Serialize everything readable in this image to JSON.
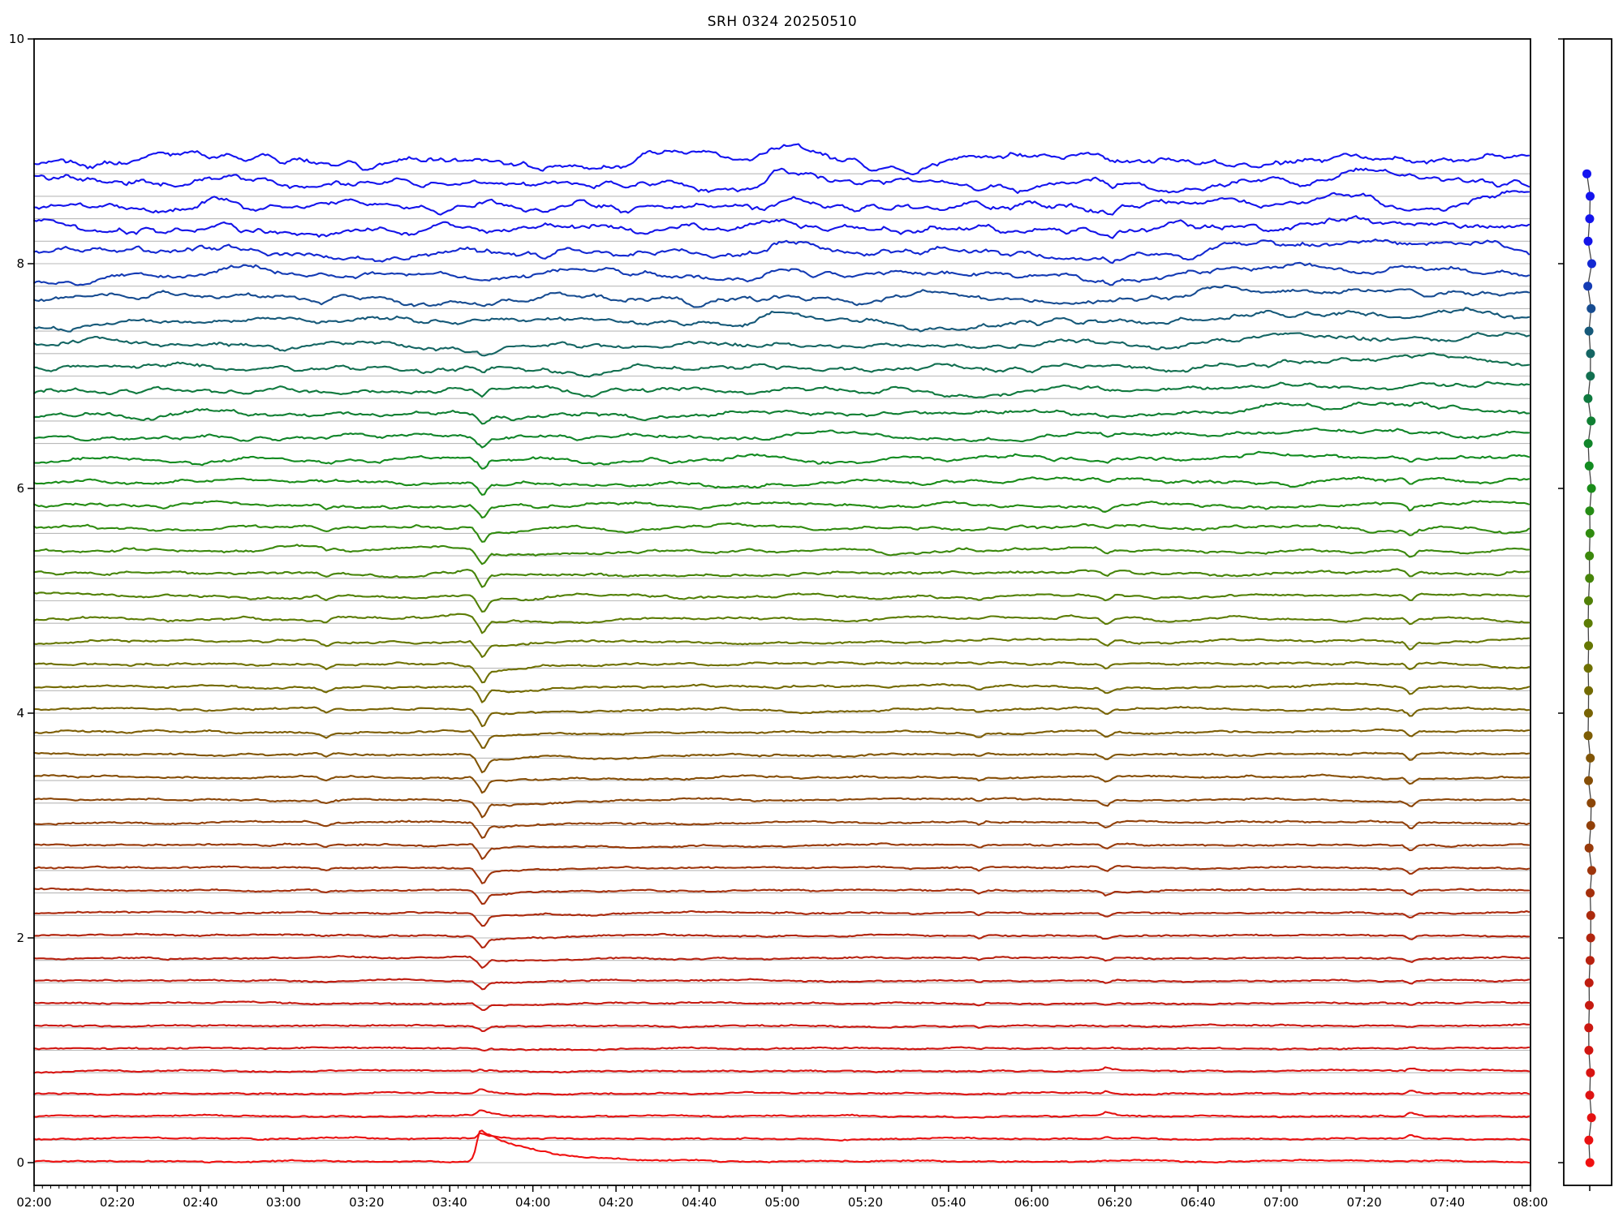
{
  "title": "SRH 0324 20250510",
  "colors": {
    "background": "#ffffff",
    "axis": "#000000",
    "baseline_grid": "#b9b9b9",
    "tick_label": "#000000",
    "marker_line": "#444444"
  },
  "axes": {
    "x_tick_labels": [
      "02:00",
      "02:20",
      "02:40",
      "03:00",
      "03:20",
      "03:40",
      "04:00",
      "04:20",
      "04:40",
      "05:00",
      "05:20",
      "05:40",
      "06:00",
      "06:20",
      "06:40",
      "07:00",
      "07:20",
      "07:40",
      "08:00"
    ],
    "y_tick_labels": [
      "0",
      "2",
      "4",
      "6",
      "8",
      "10"
    ],
    "y_tick_values": [
      0,
      2,
      4,
      6,
      8,
      10
    ],
    "x_range_hours": [
      2,
      8
    ],
    "y_range": [
      -0.2,
      10
    ],
    "x_major_tick_minutes": 20,
    "x_minor_tick_minutes": 2
  },
  "chart_data": {
    "type": "line",
    "subtype": "stacked-multifrequency-radio-light-curves",
    "title": "SRH 0324 20250510",
    "x_unit": "time UT",
    "x_start": "02:00",
    "x_end": "08:00",
    "ylim": [
      -0.2,
      10
    ],
    "n_traces": 45,
    "trace_offset_start": 0.0,
    "trace_offset_step": 0.2,
    "trace_baseline_gridlines": true,
    "colormap_stops": [
      {
        "pos": 0.0,
        "color": "#f01010"
      },
      {
        "pos": 0.09,
        "color": "#d81412"
      },
      {
        "pos": 0.18,
        "color": "#bf1c10"
      },
      {
        "pos": 0.27,
        "color": "#a52e0c"
      },
      {
        "pos": 0.36,
        "color": "#8c4508"
      },
      {
        "pos": 0.43,
        "color": "#7d5c04"
      },
      {
        "pos": 0.5,
        "color": "#6e7000"
      },
      {
        "pos": 0.55,
        "color": "#5a7d04"
      },
      {
        "pos": 0.64,
        "color": "#2e8c0f"
      },
      {
        "pos": 0.7,
        "color": "#128c1e"
      },
      {
        "pos": 0.77,
        "color": "#0f7a3c"
      },
      {
        "pos": 0.82,
        "color": "#146464"
      },
      {
        "pos": 0.86,
        "color": "#174f8c"
      },
      {
        "pos": 0.9,
        "color": "#1330c8"
      },
      {
        "pos": 0.93,
        "color": "#1414e8"
      },
      {
        "pos": 1.0,
        "color": "#1414f0"
      }
    ],
    "lift": {
      "base": 0.012,
      "linear": 0.045,
      "quartic": 0.06
    },
    "noise": {
      "slow_base": 0.004,
      "slow_scale": 0.03,
      "slow_pow": 2.5,
      "fast_frac": 0.55,
      "jitter": 0.0045
    },
    "events": [
      {
        "id": "flare-main-dip",
        "time": "03:48",
        "t": 3.8,
        "shape": "v",
        "width": 0.05,
        "amp": -0.17,
        "traces": [
          4,
          38
        ],
        "peak": 19,
        "tail": 0.3,
        "tail_decay": 0.35
      },
      {
        "id": "flare-bottom-burst",
        "time": "03:47",
        "t": 3.79,
        "shape": "spike_decay",
        "width": 0.015,
        "decay": 0.22,
        "amp": 0.28,
        "traces": [
          0,
          0
        ],
        "peak": 0
      },
      {
        "id": "flare-low-spike",
        "time": "03:47",
        "t": 3.79,
        "shape": "spike_decay",
        "width": 0.012,
        "decay": 0.05,
        "amp": 0.05,
        "traces": [
          1,
          5
        ],
        "peak": 1
      },
      {
        "id": "dip-0310",
        "time": "03:10",
        "t": 3.17,
        "shape": "v",
        "width": 0.04,
        "amp": -0.04,
        "traces": [
          10,
          33
        ],
        "peak": 22
      },
      {
        "id": "dip-0547",
        "time": "05:47",
        "t": 5.79,
        "shape": "v",
        "width": 0.03,
        "amp": -0.03,
        "traces": [
          3,
          28
        ],
        "peak": 15
      },
      {
        "id": "dip-0618",
        "time": "06:18",
        "t": 6.3,
        "shape": "v",
        "width": 0.04,
        "amp": -0.055,
        "traces": [
          5,
          35
        ],
        "peak": 20
      },
      {
        "id": "spike-0618-low",
        "time": "06:18",
        "t": 6.3,
        "shape": "spike_decay",
        "width": 0.012,
        "decay": 0.03,
        "amp": 0.03,
        "traces": [
          1,
          5
        ],
        "peak": 2
      },
      {
        "id": "dip-0619-high",
        "time": "06:19",
        "t": 6.32,
        "shape": "v",
        "width": 0.035,
        "amp": -0.05,
        "traces": [
          38,
          44
        ],
        "peak": 42
      },
      {
        "id": "dip-0731",
        "time": "07:31",
        "t": 7.52,
        "shape": "v",
        "width": 0.035,
        "amp": -0.065,
        "traces": [
          5,
          35
        ],
        "peak": 20
      },
      {
        "id": "spike-0731-low",
        "time": "07:31",
        "t": 7.52,
        "shape": "spike_decay",
        "width": 0.012,
        "decay": 0.03,
        "amp": 0.035,
        "traces": [
          1,
          5
        ],
        "peak": 2
      },
      {
        "id": "bump-0246",
        "time": "02:46",
        "t": 2.77,
        "shape": "bump",
        "width": 0.09,
        "amp": 0.06,
        "traces": [
          37,
          44
        ],
        "peak": 43
      },
      {
        "id": "bump-0500",
        "time": "05:00",
        "t": 5.0,
        "shape": "bump_decay",
        "width": 0.05,
        "decay": 0.22,
        "amp": 0.12,
        "traces": [
          36,
          44
        ],
        "peak": 43
      },
      {
        "id": "dip-0533-high",
        "time": "05:33",
        "t": 5.55,
        "shape": "v",
        "width": 0.05,
        "amp": -0.045,
        "traces": [
          39,
          44
        ],
        "peak": 42
      },
      {
        "id": "elevation-0645",
        "time": "06:45",
        "t": 6.72,
        "shape": "step",
        "width": 0.07,
        "post": 2.5,
        "amp": 0.09,
        "traces": [
          30,
          43
        ],
        "peak": 38
      },
      {
        "id": "bump-0718",
        "time": "07:18",
        "t": 7.3,
        "shape": "bump",
        "width": 0.07,
        "amp": 0.05,
        "traces": [
          40,
          44
        ],
        "peak": 44
      }
    ],
    "right_panel": {
      "n_markers": 45,
      "marker_spacing": 0.2,
      "marker_offset_start": 0.0,
      "aligned_with": "trace offsets",
      "marker_radius_px": 5.5,
      "line_color": "#444444",
      "y_ticks": [
        0,
        2,
        4,
        6,
        8,
        10
      ]
    },
    "legend": "none",
    "grid": "per-trace horizontal baselines"
  }
}
